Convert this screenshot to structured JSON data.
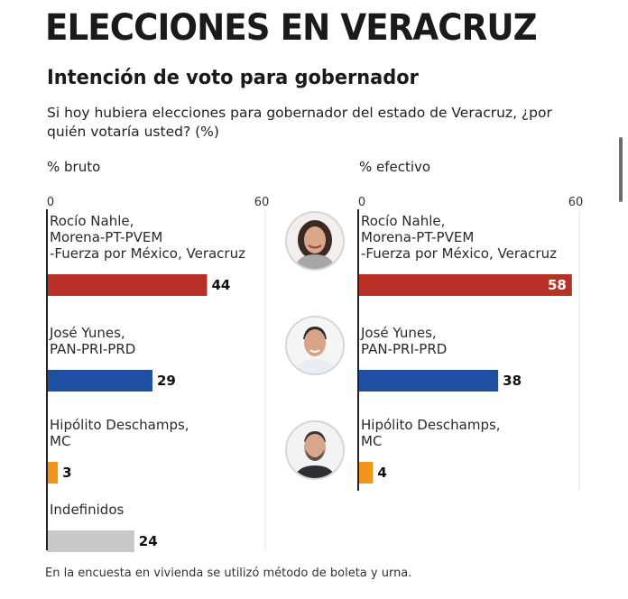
{
  "title": "ELECCIONES EN VERACRUZ",
  "subtitle": "Intención de voto para gobernador",
  "question": "Si hoy hubiera elecciones para gobernador del estado de Veracruz, ¿por quién votaría usted? (%)",
  "footnote": "En la encuesta en vivienda se utilizó método de boleta y urna.",
  "chart_data": [
    {
      "type": "bar",
      "orientation": "horizontal",
      "title": "% bruto",
      "xlim": [
        0,
        60
      ],
      "ticks": [
        "0",
        "60"
      ],
      "categories": [
        [
          "Rocío Nahle,",
          "Morena-PT-PVEM",
          "-Fuerza por México, Veracruz"
        ],
        [
          "José Yunes,",
          "PAN-PRI-PRD"
        ],
        [
          "Hipólito Deschamps,",
          "MC"
        ],
        [
          "Indefinidos"
        ]
      ],
      "values": [
        44,
        29,
        3,
        24
      ],
      "colors": [
        "#b83026",
        "#1f4fa0",
        "#f3941d",
        "#c8c8c8"
      ]
    },
    {
      "type": "bar",
      "orientation": "horizontal",
      "title": "% efectivo",
      "xlim": [
        0,
        60
      ],
      "ticks": [
        "0",
        "60"
      ],
      "categories": [
        [
          "Rocío Nahle,",
          "Morena-PT-PVEM",
          "-Fuerza por México, Veracruz"
        ],
        [
          "José Yunes,",
          "PAN-PRI-PRD"
        ],
        [
          "Hipólito Deschamps,",
          "MC"
        ]
      ],
      "values": [
        58,
        38,
        4
      ],
      "colors": [
        "#b83026",
        "#1f4fa0",
        "#f3941d"
      ]
    }
  ],
  "portraits": [
    {
      "name": "Rocío Nahle",
      "icon": "portrait-woman"
    },
    {
      "name": "José Yunes",
      "icon": "portrait-man"
    },
    {
      "name": "Hipólito Deschamps",
      "icon": "portrait-man-bearded"
    }
  ]
}
